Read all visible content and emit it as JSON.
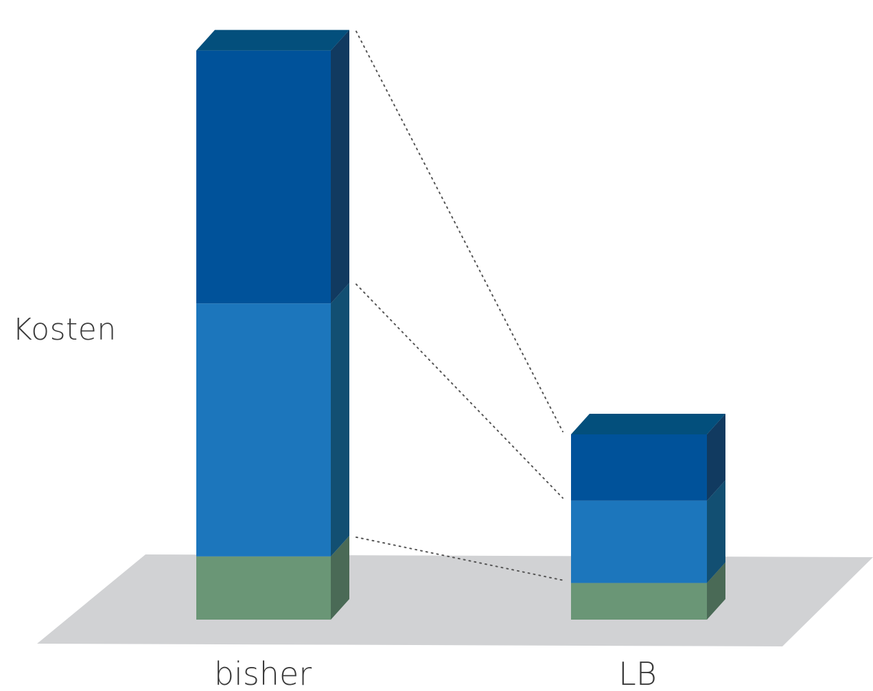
{
  "chart_data": {
    "type": "bar",
    "subtype": "stacked-3d",
    "title": "",
    "ylabel": "Kosten",
    "xlabel": "",
    "categories": [
      "bisher",
      "LB"
    ],
    "series": [
      {
        "values": [
          1.0,
          0.58
        ]
      },
      {
        "values": [
          4.0,
          1.3
        ]
      },
      {
        "values": [
          4.0,
          1.05
        ]
      }
    ],
    "ylim": [
      0,
      9.3
    ],
    "grid": false,
    "legend": "none",
    "connector_lines": "dotted",
    "colors": {
      "series": [
        "#6a9676",
        "#1c76bc",
        "#00529a"
      ],
      "series_side": [
        "#4a6a56",
        "#124f72",
        "#113a60"
      ],
      "series_top": [
        "#5a8466",
        "#16648f",
        "#034f7c"
      ],
      "floor": "#d1d2d4",
      "connector": "#555555",
      "text": "#3a3a3a"
    }
  }
}
